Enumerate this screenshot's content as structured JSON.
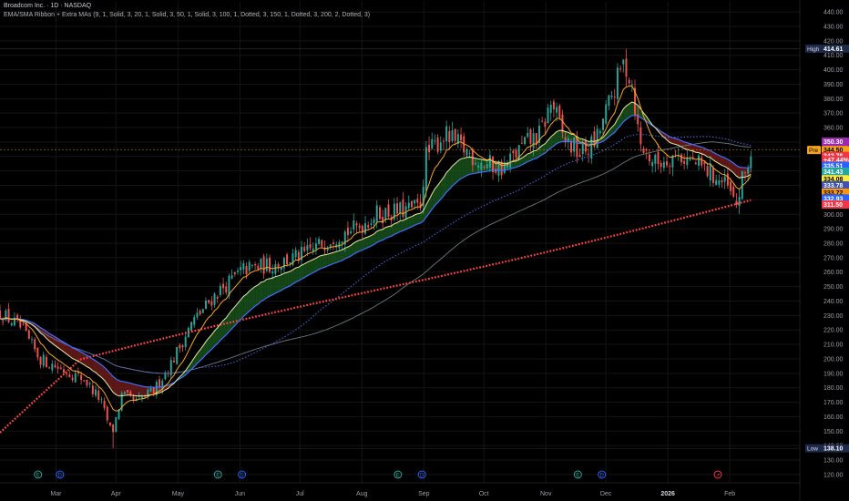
{
  "header": {
    "symbol_line": "Broadcom Inc. · 1D · NASDAQ",
    "indicator_line": "EMA/SMA Ribbon + Extra MAs (9, 1, Solid, 3, 20, 1, Solid, 3, 50, 1, Solid, 3, 100, 1, Dotted, 3, 150, 1, Dotted, 3, 200, 2, Dotted, 3)"
  },
  "chart_data": {
    "type": "candlestick",
    "xlabel": "",
    "ylabel": "",
    "ylim": [
      113,
      447
    ],
    "y_ticks": [
      440,
      430,
      420,
      410,
      400,
      390,
      380,
      370,
      360,
      350,
      340,
      330,
      320,
      310,
      300,
      290,
      280,
      270,
      260,
      250,
      240,
      230,
      220,
      210,
      200,
      190,
      180,
      170,
      160,
      150,
      140,
      130,
      120
    ],
    "x_ticks": [
      {
        "label": "Mar",
        "day": 28
      },
      {
        "label": "Apr",
        "day": 58
      },
      {
        "label": "May",
        "day": 89
      },
      {
        "label": "Jun",
        "day": 120
      },
      {
        "label": "Jul",
        "day": 150
      },
      {
        "label": "Aug",
        "day": 181
      },
      {
        "label": "Sep",
        "day": 212
      },
      {
        "label": "Oct",
        "day": 242
      },
      {
        "label": "Nov",
        "day": 273
      },
      {
        "label": "Dec",
        "day": 303
      },
      {
        "label": "2026",
        "day": 334
      },
      {
        "label": "Feb",
        "day": 365
      }
    ],
    "price_path": [
      {
        "day": 0,
        "price": 232
      },
      {
        "day": 10,
        "price": 222
      },
      {
        "day": 20,
        "price": 200
      },
      {
        "day": 32,
        "price": 192
      },
      {
        "day": 42,
        "price": 186
      },
      {
        "day": 50,
        "price": 172
      },
      {
        "day": 56,
        "price": 148
      },
      {
        "day": 61,
        "price": 175
      },
      {
        "day": 68,
        "price": 170
      },
      {
        "day": 77,
        "price": 178
      },
      {
        "day": 86,
        "price": 198
      },
      {
        "day": 96,
        "price": 225
      },
      {
        "day": 108,
        "price": 245
      },
      {
        "day": 122,
        "price": 262
      },
      {
        "day": 136,
        "price": 265
      },
      {
        "day": 152,
        "price": 272
      },
      {
        "day": 167,
        "price": 285
      },
      {
        "day": 178,
        "price": 290
      },
      {
        "day": 188,
        "price": 300
      },
      {
        "day": 200,
        "price": 302
      },
      {
        "day": 210,
        "price": 305
      },
      {
        "day": 213,
        "price": 340
      },
      {
        "day": 222,
        "price": 355
      },
      {
        "day": 232,
        "price": 345
      },
      {
        "day": 242,
        "price": 335
      },
      {
        "day": 252,
        "price": 332
      },
      {
        "day": 262,
        "price": 348
      },
      {
        "day": 270,
        "price": 355
      },
      {
        "day": 276,
        "price": 378
      },
      {
        "day": 282,
        "price": 352
      },
      {
        "day": 290,
        "price": 342
      },
      {
        "day": 298,
        "price": 350
      },
      {
        "day": 306,
        "price": 382
      },
      {
        "day": 312,
        "price": 405
      },
      {
        "day": 316,
        "price": 392
      },
      {
        "day": 320,
        "price": 348
      },
      {
        "day": 328,
        "price": 335
      },
      {
        "day": 338,
        "price": 342
      },
      {
        "day": 348,
        "price": 335
      },
      {
        "day": 356,
        "price": 328
      },
      {
        "day": 364,
        "price": 318
      },
      {
        "day": 368,
        "price": 305
      },
      {
        "day": 371,
        "price": 322
      },
      {
        "day": 376,
        "price": 343
      }
    ],
    "high_label": {
      "text": "High",
      "value": "414.61",
      "price": 414.61
    },
    "low_label": {
      "text": "Low",
      "value": "138.10",
      "price": 138.1
    },
    "price_labels": [
      {
        "value": "350.30",
        "price": 350.3,
        "color": "#9c27b0",
        "text_color": "#ffffff"
      },
      {
        "value": "344.50",
        "price": 344.5,
        "color": "#f7a21b",
        "text_color": "#000000",
        "tag": "Pre"
      },
      {
        "value": "342.76",
        "price": 340.4,
        "color": "#f23645",
        "text_color": "#ffffff"
      },
      {
        "value": "+47.44%",
        "price": 337.6,
        "color": "#f23645",
        "text_color": "#ffffff"
      },
      {
        "value": "335.51",
        "price": 333.6,
        "color": "#2962ff",
        "text_color": "#ffffff"
      },
      {
        "value": "341.43",
        "price": 329.5,
        "color": "#26a69a",
        "text_color": "#ffffff"
      },
      {
        "value": "334.08",
        "price": 324.3,
        "color": "#ffeb3b",
        "text_color": "#000000"
      },
      {
        "value": "333.78",
        "price": 320.0,
        "color": "#3f51b5",
        "text_color": "#ffffff"
      },
      {
        "value": "333.72",
        "price": 315.0,
        "color": "#ff9800",
        "text_color": "#000000"
      },
      {
        "value": "332.93",
        "price": 311.0,
        "color": "#2962ff",
        "text_color": "#ffffff"
      },
      {
        "value": "311.50",
        "price": 306.8,
        "color": "#f23645",
        "text_color": "#ffffff"
      }
    ],
    "events": [
      {
        "day": 19,
        "kind": "E",
        "color": "#26a69a"
      },
      {
        "day": 30,
        "kind": "D",
        "color": "#2962ff"
      },
      {
        "day": 109,
        "kind": "E",
        "color": "#26a69a"
      },
      {
        "day": 121,
        "kind": "D",
        "color": "#2962ff"
      },
      {
        "day": 199,
        "kind": "E",
        "color": "#26a69a"
      },
      {
        "day": 211,
        "kind": "D",
        "color": "#2962ff"
      },
      {
        "day": 289,
        "kind": "E",
        "color": "#26a69a"
      },
      {
        "day": 301,
        "kind": "D",
        "color": "#2962ff"
      },
      {
        "day": 359,
        "kind": "↗",
        "color": "#f23645"
      }
    ],
    "colors": {
      "up": "#26a69a",
      "down": "#ef5350",
      "ema9": "#f5a623",
      "ema20": "#e8e8a0",
      "ema50": "#3f6fff",
      "sma100": "#4a60e0",
      "sma150": "#6a7a80",
      "sma200": "#ff4444",
      "ribbon_bull": "#1b5e20",
      "ribbon_bear": "#7b1f1f"
    }
  }
}
